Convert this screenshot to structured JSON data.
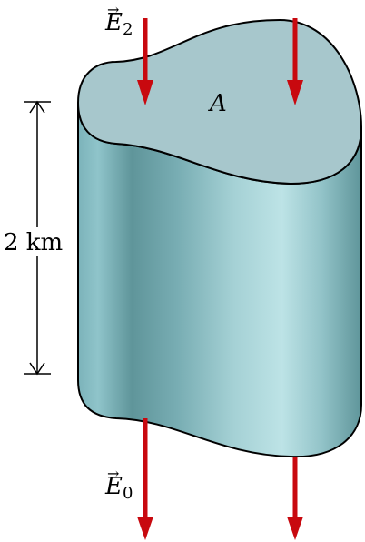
{
  "figure": {
    "surface_label": "A",
    "top_field": {
      "symbol": "E",
      "arrow": "→",
      "subscript": "2"
    },
    "bottom_field": {
      "symbol": "E",
      "arrow": "→",
      "subscript": "0"
    },
    "height_label": "2 km"
  },
  "colors": {
    "field_arrow": "#c8090f",
    "top_face": "#a7c7cc",
    "side_dark": "#5f959a",
    "side_light": "#bde3e6",
    "outline": "#000000"
  }
}
